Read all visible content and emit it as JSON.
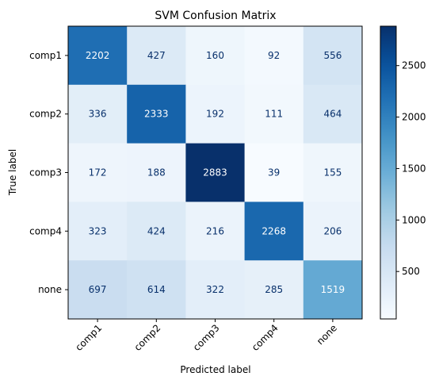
{
  "chart_data": {
    "type": "heatmap",
    "title": "SVM Confusion Matrix",
    "xlabel": "Predicted label",
    "ylabel": "True label",
    "x_categories": [
      "comp1",
      "comp2",
      "comp3",
      "comp4",
      "none"
    ],
    "y_categories": [
      "comp1",
      "comp2",
      "comp3",
      "comp4",
      "none"
    ],
    "values": [
      [
        2202,
        427,
        160,
        92,
        556
      ],
      [
        336,
        2333,
        192,
        111,
        464
      ],
      [
        172,
        188,
        2883,
        39,
        155
      ],
      [
        323,
        424,
        216,
        2268,
        206
      ],
      [
        697,
        614,
        322,
        285,
        1519
      ]
    ],
    "colormap": "Blues",
    "colorbar": {
      "range": [
        39,
        2883
      ],
      "ticks": [
        500,
        1000,
        1500,
        2000,
        2500
      ]
    },
    "colors": {
      "low": "#f7fbff",
      "high": "#08306b",
      "text_dark": "#08306b",
      "text_light": "#ffffff"
    }
  }
}
